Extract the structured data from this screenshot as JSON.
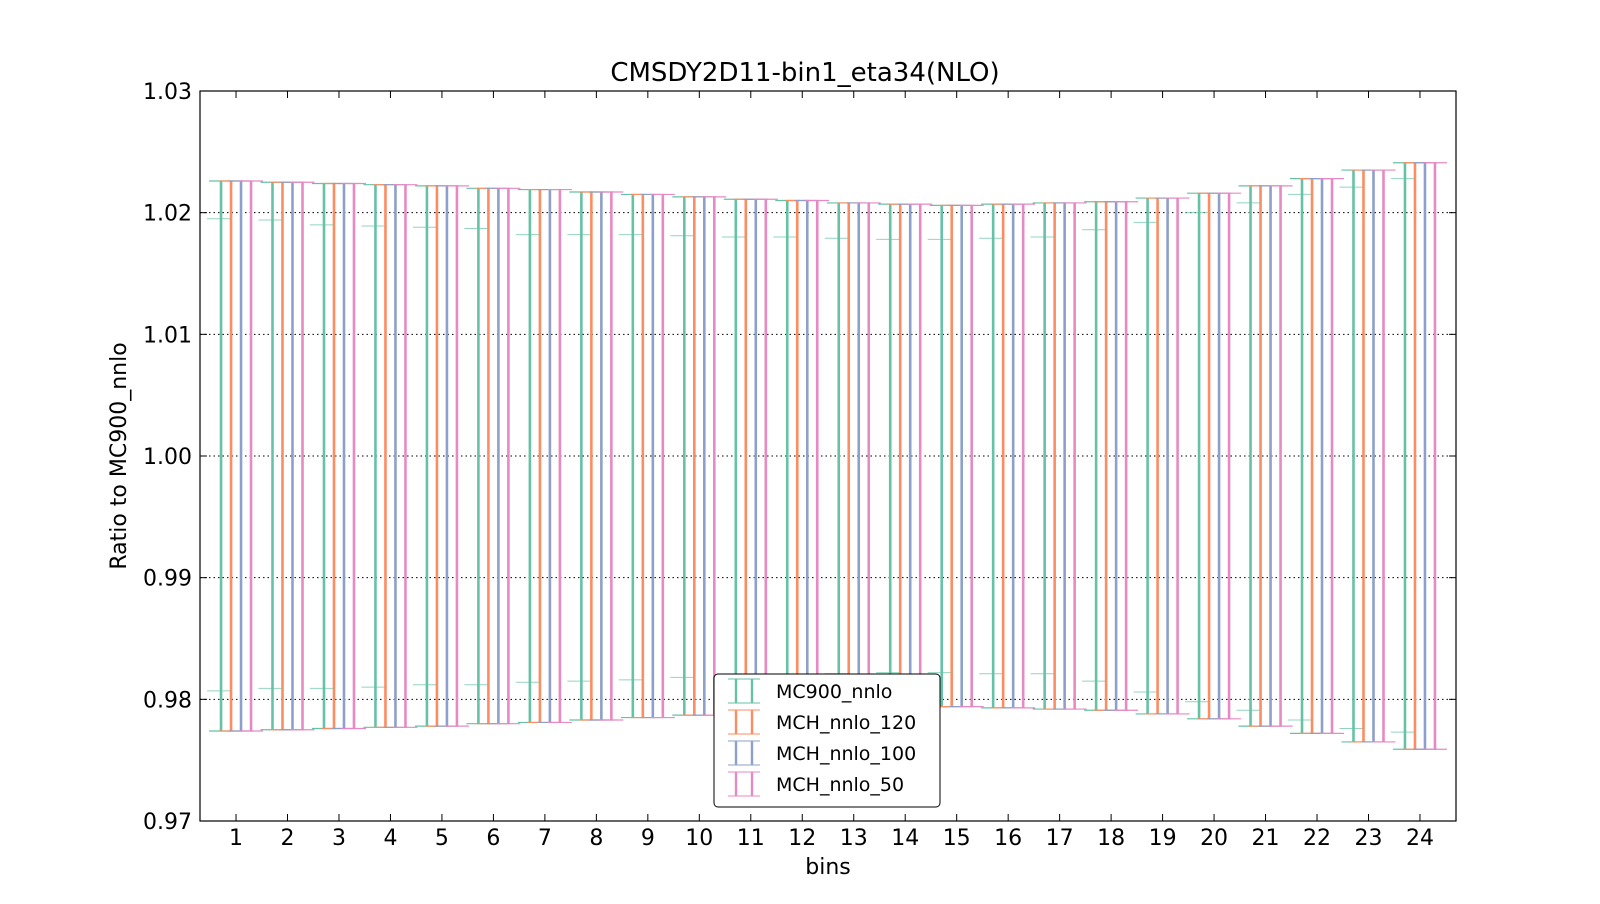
{
  "chart_data": {
    "type": "errorbar",
    "title": "CMSDY2D11-bin1_eta34(NLO)",
    "xlabel": "bins",
    "ylabel": "Ratio to MC900_nnlo",
    "ylim": [
      0.97,
      1.03
    ],
    "yticks": [
      "0.97",
      "0.98",
      "0.99",
      "1.00",
      "1.01",
      "1.02",
      "1.03"
    ],
    "yticks_values": [
      0.97,
      0.98,
      0.99,
      1.0,
      1.01,
      1.02,
      1.03
    ],
    "grid": "horizontal dotted",
    "legend_position": "lower center",
    "categories": [
      "1",
      "2",
      "3",
      "4",
      "5",
      "6",
      "7",
      "8",
      "9",
      "10",
      "11",
      "12",
      "13",
      "14",
      "15",
      "16",
      "17",
      "18",
      "19",
      "20",
      "21",
      "22",
      "23",
      "24"
    ],
    "series": [
      {
        "name": "MC900_nnlo",
        "color": "#66c2a5",
        "central": [
          1,
          1,
          1,
          1,
          1,
          1,
          1,
          1,
          1,
          1,
          1,
          1,
          1,
          1,
          1,
          1,
          1,
          1,
          1,
          1,
          1,
          1,
          1,
          1
        ],
        "upper": [
          1.0226,
          1.0225,
          1.0224,
          1.0223,
          1.0222,
          1.022,
          1.0219,
          1.0217,
          1.0215,
          1.0213,
          1.0211,
          1.021,
          1.0208,
          1.0207,
          1.0206,
          1.0207,
          1.0208,
          1.0209,
          1.0212,
          1.0216,
          1.0222,
          1.0228,
          1.0235,
          1.0241
        ],
        "lower": [
          0.9774,
          0.9775,
          0.9776,
          0.9777,
          0.9778,
          0.978,
          0.9781,
          0.9783,
          0.9785,
          0.9787,
          0.9789,
          0.979,
          0.9792,
          0.9793,
          0.9794,
          0.9793,
          0.9792,
          0.9791,
          0.9788,
          0.9784,
          0.9778,
          0.9772,
          0.9765,
          0.9759
        ],
        "inner_upper": [
          1.0195,
          1.0194,
          1.019,
          1.0189,
          1.0188,
          1.0187,
          1.0182,
          1.0182,
          1.0182,
          1.0181,
          1.018,
          1.018,
          1.0179,
          1.0178,
          1.0178,
          1.0179,
          1.018,
          1.0186,
          1.0192,
          1.02,
          1.0208,
          1.0215,
          1.0221,
          1.0228
        ],
        "inner_lower": [
          0.9807,
          0.9809,
          0.9809,
          0.981,
          0.9812,
          0.9812,
          0.9814,
          0.9815,
          0.9816,
          0.9818,
          0.9819,
          0.982,
          0.9821,
          0.9822,
          0.9822,
          0.9821,
          0.9821,
          0.9815,
          0.9806,
          0.9798,
          0.9791,
          0.9783,
          0.9776,
          0.9773
        ]
      },
      {
        "name": "MCH_nnlo_120",
        "color": "#fc8d62",
        "central": [
          1,
          1,
          1,
          1,
          1,
          1,
          1,
          1,
          1,
          1,
          1,
          1,
          1,
          1,
          1,
          1,
          1,
          1,
          1,
          1,
          1,
          1,
          1,
          1
        ],
        "upper": [
          1.0226,
          1.0225,
          1.0224,
          1.0223,
          1.0222,
          1.022,
          1.0219,
          1.0217,
          1.0215,
          1.0213,
          1.0211,
          1.021,
          1.0208,
          1.0207,
          1.0206,
          1.0207,
          1.0208,
          1.0209,
          1.0212,
          1.0216,
          1.0222,
          1.0228,
          1.0235,
          1.0241
        ],
        "lower": [
          0.9774,
          0.9775,
          0.9776,
          0.9777,
          0.9778,
          0.978,
          0.9781,
          0.9783,
          0.9785,
          0.9787,
          0.9789,
          0.979,
          0.9792,
          0.9793,
          0.9794,
          0.9793,
          0.9792,
          0.9791,
          0.9788,
          0.9784,
          0.9778,
          0.9772,
          0.9765,
          0.9759
        ]
      },
      {
        "name": "MCH_nnlo_100",
        "color": "#8da0cb",
        "central": [
          1,
          1,
          1,
          1,
          1,
          1,
          1,
          1,
          1,
          1,
          1,
          1,
          1,
          1,
          1,
          1,
          1,
          1,
          1,
          1,
          1,
          1,
          1,
          1
        ],
        "upper": [
          1.0226,
          1.0225,
          1.0224,
          1.0223,
          1.0222,
          1.022,
          1.0219,
          1.0217,
          1.0215,
          1.0213,
          1.0211,
          1.021,
          1.0208,
          1.0207,
          1.0206,
          1.0207,
          1.0208,
          1.0209,
          1.0212,
          1.0216,
          1.0222,
          1.0228,
          1.0235,
          1.0241
        ],
        "lower": [
          0.9774,
          0.9775,
          0.9776,
          0.9777,
          0.9778,
          0.978,
          0.9781,
          0.9783,
          0.9785,
          0.9787,
          0.9789,
          0.979,
          0.9792,
          0.9793,
          0.9794,
          0.9793,
          0.9792,
          0.9791,
          0.9788,
          0.9784,
          0.9778,
          0.9772,
          0.9765,
          0.9759
        ]
      },
      {
        "name": "MCH_nnlo_50",
        "color": "#e78ac3",
        "central": [
          1,
          1,
          1,
          1,
          1,
          1,
          1,
          1,
          1,
          1,
          1,
          1,
          1,
          1,
          1,
          1,
          1,
          1,
          1,
          1,
          1,
          1,
          1,
          1
        ],
        "upper": [
          1.0226,
          1.0225,
          1.0224,
          1.0223,
          1.0222,
          1.022,
          1.0219,
          1.0217,
          1.0215,
          1.0213,
          1.0211,
          1.021,
          1.0208,
          1.0207,
          1.0206,
          1.0207,
          1.0208,
          1.0209,
          1.0212,
          1.0216,
          1.0222,
          1.0228,
          1.0235,
          1.0241
        ],
        "lower": [
          0.9774,
          0.9775,
          0.9776,
          0.9777,
          0.9778,
          0.978,
          0.9781,
          0.9783,
          0.9785,
          0.9787,
          0.9789,
          0.979,
          0.9792,
          0.9793,
          0.9794,
          0.9793,
          0.9792,
          0.9791,
          0.9788,
          0.9784,
          0.9778,
          0.9772,
          0.9765,
          0.9759
        ]
      }
    ]
  }
}
